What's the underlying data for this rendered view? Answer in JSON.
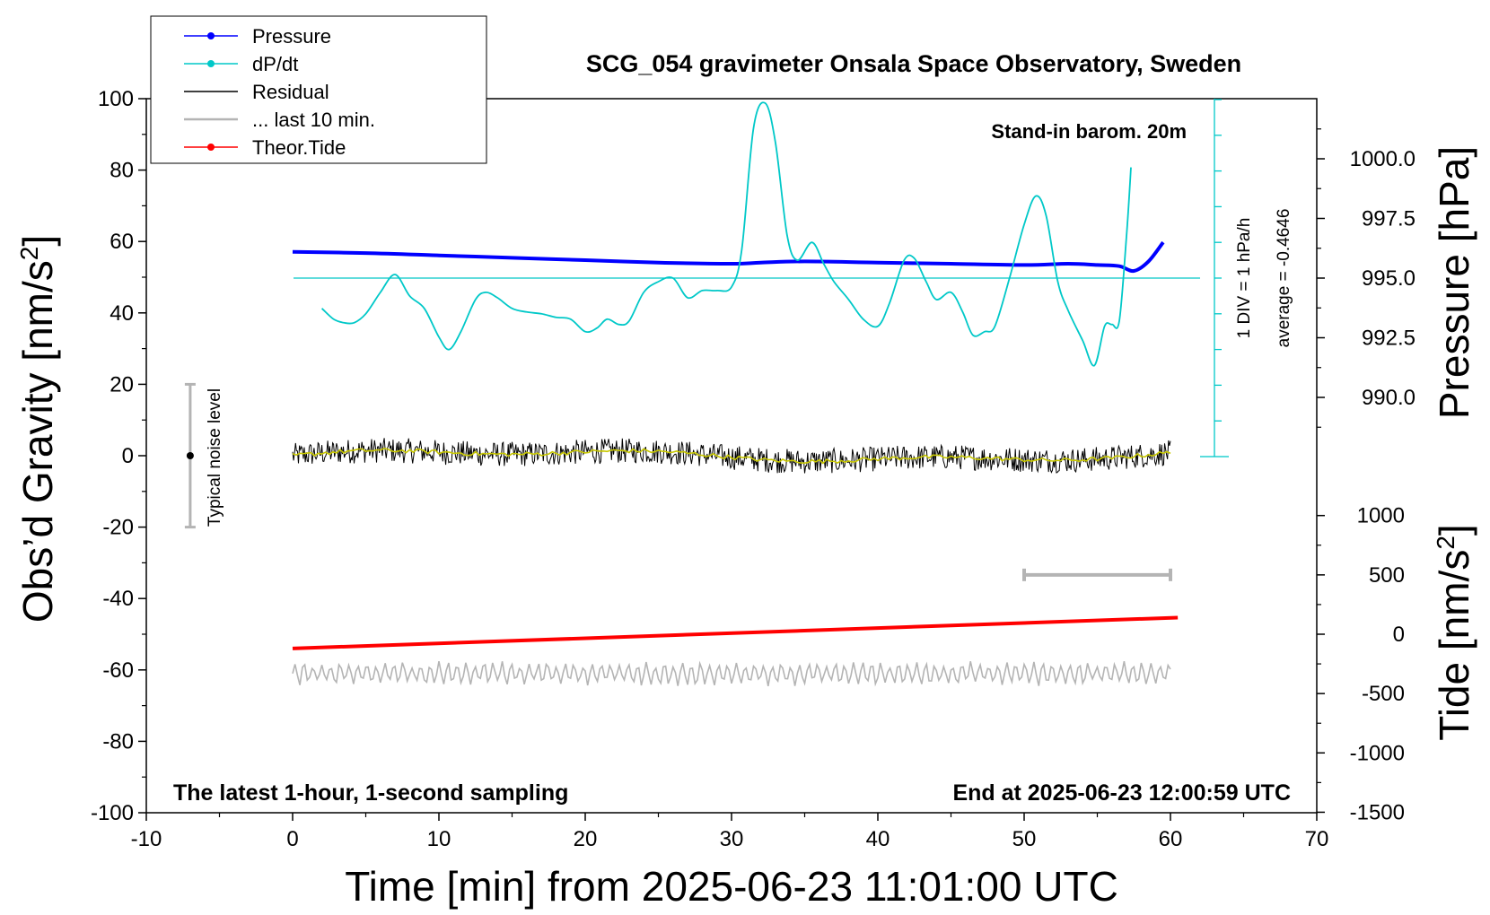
{
  "chart_data": {
    "type": "line",
    "title": "SCG_054 gravimeter Onsala Space Observatory, Sweden",
    "xlabel": "Time [min] from 2025-06-23 11:01:00 UTC",
    "ylabel_left_base": "Obs’d Gravity [nm/s",
    "ylabel_left_sup": "2",
    "ylabel_left_end": "]",
    "ylabel_right_pressure": "Pressure [hPa]",
    "ylabel_right_tide_base": "Tide [nm/s",
    "ylabel_right_tide_sup": "2",
    "ylabel_right_tide_end": "]",
    "xlim": [
      -10,
      70
    ],
    "ylim": [
      -100,
      100
    ],
    "pressure_lim": [
      987.5,
      1002.5
    ],
    "tide_lim": [
      -1500,
      1500
    ],
    "x_ticks": [
      "-10",
      "0",
      "10",
      "20",
      "30",
      "40",
      "50",
      "60",
      "70"
    ],
    "y_ticks": [
      "-100",
      "-80",
      "-60",
      "-40",
      "-20",
      "0",
      "20",
      "40",
      "60",
      "80",
      "100"
    ],
    "pressure_ticks": [
      "990.0",
      "992.5",
      "995.0",
      "997.5",
      "1000.0"
    ],
    "tide_ticks": [
      "-1500",
      "-1000",
      "-500",
      "0",
      "500",
      "1000"
    ],
    "annotations": {
      "barometer": "Stand-in barom. 20m",
      "sampling": "The latest 1-hour, 1-second sampling",
      "end_time": "End at 2025-06-23 12:00:59 UTC",
      "div_label": "1 DIV = 1 hPa/h",
      "average_label": "average = -0.4646",
      "noise_label": "Typical noise level"
    },
    "noise_bar": {
      "x": -7,
      "y_low": -20,
      "y_high": 20,
      "y_center": 0
    },
    "last10_bar": {
      "x_start": 50,
      "x_end": 60,
      "tide_value": 500
    },
    "legend": {
      "position": "top-left",
      "items": [
        {
          "label": "Pressure",
          "color": "#0000ff",
          "marker": true
        },
        {
          "label": "dP/dt",
          "color": "#00c8c8",
          "marker": true
        },
        {
          "label": "Residual",
          "color": "#000000",
          "marker": false
        },
        {
          "label": "... last 10 min.",
          "color": "#b4b4b4",
          "marker": false
        },
        {
          "label": "Theor.Tide",
          "color": "#ff0000",
          "marker": true
        }
      ]
    },
    "series": [
      {
        "name": "Pressure",
        "axis": "pressure",
        "color": "#0000ff",
        "x": [
          0,
          5,
          10,
          15,
          20,
          25,
          30,
          32,
          35,
          40,
          45,
          50,
          53,
          55,
          56.5,
          57.5,
          58.5,
          59.5
        ],
        "y": [
          996.1,
          996.05,
          995.95,
          995.85,
          995.75,
          995.65,
          995.6,
          995.65,
          995.7,
          995.65,
          995.6,
          995.55,
          995.6,
          995.55,
          995.5,
          995.3,
          995.7,
          996.5
        ]
      },
      {
        "name": "dP/dt",
        "axis": "dpdt",
        "color": "#00c8c8",
        "x": [
          2,
          2.8,
          3.5,
          4.2,
          5,
          6,
          7,
          8,
          9,
          10,
          10.7,
          11.5,
          12.5,
          13.2,
          14,
          15,
          16,
          17,
          18,
          19,
          20,
          20.8,
          21.5,
          22.3,
          23,
          24,
          25,
          26,
          27,
          28,
          29,
          30,
          30.7,
          31.5,
          32.3,
          33,
          33.8,
          34.5,
          35.5,
          36.3,
          37,
          38,
          39,
          40,
          40.8,
          41.8,
          42.5,
          43.3,
          44,
          45,
          45.8,
          46.5,
          47.3,
          48,
          49,
          50,
          50.8,
          51.5,
          52.3,
          53,
          54,
          54.8,
          55.5,
          56,
          56.5,
          57,
          57.3
        ],
        "y": [
          -0.85,
          -1.15,
          -1.25,
          -1.25,
          -1.0,
          -0.4,
          0.1,
          -0.5,
          -0.85,
          -1.65,
          -2.0,
          -1.5,
          -0.6,
          -0.4,
          -0.55,
          -0.85,
          -0.95,
          -1.0,
          -1.1,
          -1.15,
          -1.5,
          -1.4,
          -1.15,
          -1.3,
          -1.2,
          -0.4,
          -0.1,
          0.0,
          -0.55,
          -0.35,
          -0.35,
          -0.25,
          0.8,
          4.2,
          4.9,
          3.8,
          1.2,
          0.5,
          1.0,
          0.4,
          -0.1,
          -0.6,
          -1.15,
          -1.35,
          -0.7,
          0.5,
          0.55,
          -0.1,
          -0.6,
          -0.4,
          -0.95,
          -1.6,
          -1.5,
          -1.35,
          0.0,
          1.5,
          2.3,
          1.75,
          -0.1,
          -0.9,
          -1.75,
          -2.45,
          -1.35,
          -1.3,
          -1.2,
          1.2,
          3.1
        ]
      },
      {
        "name": "Residual",
        "axis": "gravity",
        "color": "#000000",
        "x_range": [
          0,
          60
        ],
        "center": 0,
        "amplitude": 3.5
      },
      {
        "name": "... last 10 min.",
        "axis": "gravity",
        "color": "#b4b4b4",
        "x_range": [
          0,
          60
        ],
        "center": -61,
        "amplitude": 3
      },
      {
        "name": "Theor.Tide",
        "axis": "tide",
        "color": "#ff0000",
        "x": [
          0,
          60.5
        ],
        "y": [
          -120,
          140
        ]
      }
    ]
  }
}
